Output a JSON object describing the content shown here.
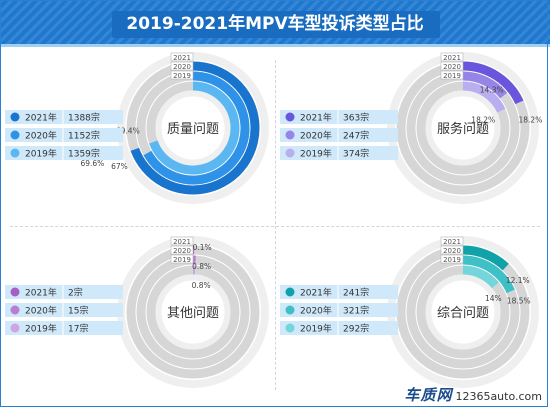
{
  "title": "2019-2021年MPV车型投诉类型占比",
  "watermark": {
    "logo": "车质网",
    "site": "12365auto.com"
  },
  "chart_data": [
    {
      "type": "donut",
      "title": "质量问题",
      "years": [
        "2021",
        "2020",
        "2019"
      ],
      "legend": [
        {
          "year": "2021年",
          "count": "1388宗"
        },
        {
          "year": "2020年",
          "count": "1152宗"
        },
        {
          "year": "2019年",
          "count": "1359宗"
        }
      ],
      "values": [
        69.4,
        67,
        69.6
      ],
      "value_labels": [
        "69.4%",
        "67%",
        "69.6%"
      ],
      "colors": [
        "#1874cd",
        "#2e93e8",
        "#5bb7f2"
      ]
    },
    {
      "type": "donut",
      "title": "服务问题",
      "years": [
        "2021",
        "2020",
        "2019"
      ],
      "legend": [
        {
          "year": "2021年",
          "count": "363宗"
        },
        {
          "year": "2020年",
          "count": "247宗"
        },
        {
          "year": "2019年",
          "count": "374宗"
        }
      ],
      "values": [
        18.2,
        14.3,
        18.2
      ],
      "value_labels": [
        "18.2%",
        "14.3%",
        "18.2%"
      ],
      "colors": [
        "#6a56dc",
        "#9684e6",
        "#b9aef0"
      ]
    },
    {
      "type": "donut",
      "title": "其他问题",
      "years": [
        "2021",
        "2020",
        "2019"
      ],
      "legend": [
        {
          "year": "2021年",
          "count": "2宗"
        },
        {
          "year": "2020年",
          "count": "15宗"
        },
        {
          "year": "2019年",
          "count": "17宗"
        }
      ],
      "values": [
        0.1,
        0.8,
        0.8
      ],
      "value_labels": [
        "0.1%",
        "0.8%",
        "0.8%"
      ],
      "colors": [
        "#a35fc4",
        "#b77ed4",
        "#cda5e2"
      ]
    },
    {
      "type": "donut",
      "title": "综合问题",
      "years": [
        "2021",
        "2020",
        "2019"
      ],
      "legend": [
        {
          "year": "2021年",
          "count": "241宗"
        },
        {
          "year": "2020年",
          "count": "321宗"
        },
        {
          "year": "2019年",
          "count": "292宗"
        }
      ],
      "values": [
        12.1,
        18.5,
        14
      ],
      "value_labels": [
        "12.1%",
        "18.5%",
        "14%"
      ],
      "colors": [
        "#10a2a8",
        "#3fbfc6",
        "#74d5db"
      ]
    }
  ]
}
